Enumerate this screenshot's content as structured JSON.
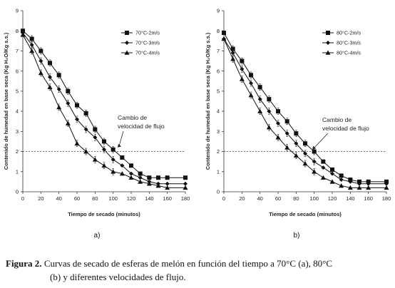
{
  "chart_data": [
    {
      "type": "line",
      "panel_label": "a)",
      "xlabel": "Tiempo de secado (minutos)",
      "ylabel": "Contenido de humedad en base seca (Kg H₂O/Kg s.s.)",
      "xlim": [
        0,
        180
      ],
      "ylim": [
        0,
        9
      ],
      "xticks": [
        0,
        20,
        40,
        60,
        80,
        100,
        120,
        140,
        160,
        180
      ],
      "yticks": [
        0,
        1,
        2,
        3,
        4,
        5,
        6,
        7,
        8,
        9
      ],
      "grid": false,
      "legend_position": "top-right",
      "reference_line": {
        "y": 2,
        "style": "dashed"
      },
      "annotation": {
        "lines": [
          "Cambio de",
          "velocidad de flujo"
        ],
        "arrow_to": [
          105,
          2.2
        ]
      },
      "series": [
        {
          "name": "70°C-2m/s",
          "marker": "square",
          "x": [
            0,
            10,
            20,
            30,
            40,
            50,
            60,
            70,
            80,
            90,
            100,
            110,
            120,
            130,
            140,
            150,
            160,
            180
          ],
          "y": [
            8.0,
            7.6,
            7.0,
            6.4,
            5.8,
            5.0,
            4.3,
            3.9,
            3.1,
            2.5,
            2.1,
            1.7,
            1.3,
            0.9,
            0.7,
            0.7,
            0.7,
            0.7
          ]
        },
        {
          "name": "70°C-3m/s",
          "marker": "diamond",
          "x": [
            0,
            10,
            20,
            30,
            40,
            50,
            60,
            70,
            80,
            90,
            100,
            110,
            120,
            130,
            140,
            150,
            160,
            180
          ],
          "y": [
            7.9,
            7.3,
            6.5,
            5.7,
            5.1,
            4.4,
            3.6,
            3.1,
            2.7,
            2.1,
            1.6,
            1.3,
            0.9,
            0.7,
            0.5,
            0.4,
            0.4,
            0.4
          ]
        },
        {
          "name": "70°C-4m/s",
          "marker": "triangle",
          "x": [
            0,
            10,
            20,
            30,
            40,
            50,
            60,
            70,
            80,
            90,
            100,
            110,
            120,
            130,
            140,
            150,
            160,
            180
          ],
          "y": [
            7.8,
            7.0,
            5.9,
            5.2,
            4.2,
            3.4,
            2.4,
            2.0,
            1.6,
            1.3,
            1.0,
            0.9,
            0.7,
            0.5,
            0.4,
            0.3,
            0.2,
            0.2
          ]
        }
      ]
    },
    {
      "type": "line",
      "panel_label": "b)",
      "xlabel": "Tiempo de secado (minutos)",
      "ylabel": "Contenido de humedad en base seca (Kg H₂O/Kg s.s.)",
      "xlim": [
        0,
        180
      ],
      "ylim": [
        0,
        9
      ],
      "xticks": [
        0,
        20,
        40,
        60,
        80,
        100,
        120,
        140,
        160,
        180
      ],
      "yticks": [
        0,
        1,
        2,
        3,
        4,
        5,
        6,
        7,
        8,
        9
      ],
      "grid": false,
      "legend_position": "top-right",
      "reference_line": {
        "y": 2,
        "style": "dashed"
      },
      "annotation": {
        "lines": [
          "Cambio de",
          "velocidad de flujo"
        ],
        "arrow_to": [
          98,
          2.1
        ]
      },
      "series": [
        {
          "name": "80°C-2m/s",
          "marker": "square",
          "x": [
            0,
            10,
            20,
            30,
            40,
            50,
            60,
            70,
            80,
            90,
            100,
            110,
            120,
            130,
            140,
            150,
            160,
            180
          ],
          "y": [
            7.9,
            7.1,
            6.5,
            5.8,
            5.2,
            4.6,
            4.0,
            3.5,
            2.9,
            2.4,
            2.0,
            1.5,
            1.1,
            0.8,
            0.6,
            0.5,
            0.5,
            0.5
          ]
        },
        {
          "name": "80°C-3m/s",
          "marker": "diamond",
          "x": [
            0,
            10,
            20,
            30,
            40,
            50,
            60,
            70,
            80,
            90,
            100,
            110,
            120,
            130,
            140,
            150,
            160,
            180
          ],
          "y": [
            7.6,
            6.9,
            6.1,
            5.4,
            4.6,
            4.0,
            3.4,
            2.9,
            2.4,
            1.9,
            1.5,
            1.2,
            0.9,
            0.6,
            0.5,
            0.4,
            0.4,
            0.4
          ]
        },
        {
          "name": "80°C-4m/s",
          "marker": "triangle",
          "x": [
            0,
            10,
            20,
            30,
            40,
            50,
            60,
            70,
            80,
            90,
            100,
            110,
            120,
            130,
            140,
            150,
            160,
            180
          ],
          "y": [
            7.6,
            6.6,
            5.6,
            4.8,
            4.0,
            3.2,
            2.7,
            2.2,
            1.8,
            1.4,
            1.0,
            0.7,
            0.5,
            0.3,
            0.2,
            0.2,
            0.2,
            0.2
          ]
        }
      ]
    }
  ],
  "caption": {
    "label": "Figura 2.",
    "line1": " Curvas de secado de esferas de melón en función del tiempo a 70°C (a), 80°C",
    "line2": "(b) y diferentes velocidades  de flujo."
  }
}
